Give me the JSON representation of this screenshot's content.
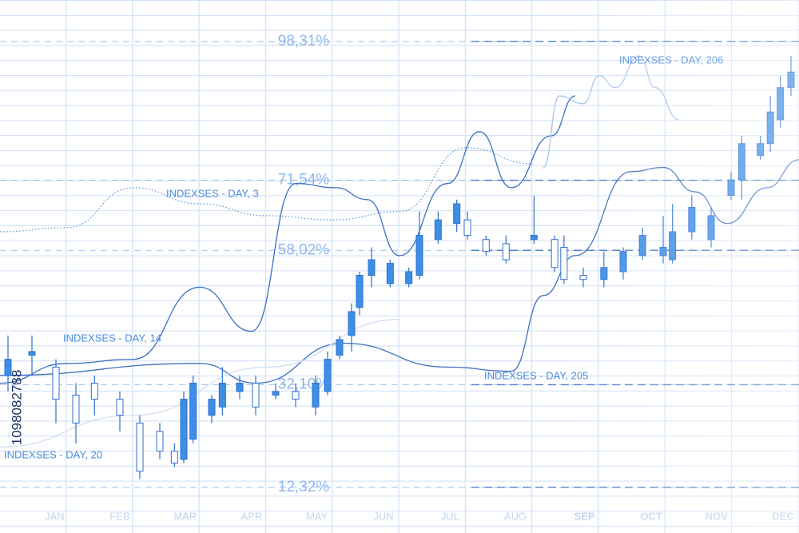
{
  "image_id": "1098082788",
  "chart_data": {
    "type": "candlestick",
    "xlim": [
      0,
      12
    ],
    "ylim": [
      3.5,
      106.3
    ],
    "yticks": [
      {
        "value": 98.31,
        "label": "98,31%"
      },
      {
        "value": 71.54,
        "label": "71,54%"
      },
      {
        "value": 58.02,
        "label": "58,02%"
      },
      {
        "value": 32.1,
        "label": "32,10%"
      },
      {
        "value": 12.32,
        "label": "12,32%"
      }
    ],
    "xticks": [
      {
        "value": 0.82,
        "label": "JAN"
      },
      {
        "value": 1.8,
        "label": "FEB"
      },
      {
        "value": 2.78,
        "label": "MAR"
      },
      {
        "value": 3.78,
        "label": "APR"
      },
      {
        "value": 4.76,
        "label": "MAY"
      },
      {
        "value": 5.76,
        "label": "JUN"
      },
      {
        "value": 6.76,
        "label": "JUL"
      },
      {
        "value": 7.74,
        "label": "AUG"
      },
      {
        "value": 8.78,
        "label": "SEP"
      },
      {
        "value": 9.78,
        "label": "OCT"
      },
      {
        "value": 10.76,
        "label": "NOV"
      },
      {
        "value": 11.76,
        "label": "DEC"
      }
    ],
    "color": "#3d8fe6",
    "candles": {
      "x": [
        0.12,
        0.48,
        0.84,
        1.14,
        1.42,
        1.8,
        2.1,
        2.4,
        2.62,
        2.76,
        2.9,
        3.18,
        3.34,
        3.6,
        3.84,
        4.14,
        4.44,
        4.74,
        4.92,
        5.1,
        5.28,
        5.4,
        5.58,
        5.86,
        6.14,
        6.3,
        6.58,
        6.86,
        7.02,
        7.3,
        7.6,
        8.02,
        8.33,
        8.47,
        8.76,
        9.07,
        9.36,
        9.65,
        9.96,
        10.1,
        10.39,
        10.68,
        10.98,
        11.14,
        11.42,
        11.57,
        11.72,
        11.88
      ],
      "open": [
        33.9,
        37.8,
        35.5,
        30.1,
        32.4,
        29.3,
        24.7,
        23.1,
        19.3,
        17.7,
        21.6,
        26.2,
        27.8,
        30.8,
        32.4,
        30.1,
        30.8,
        27.8,
        30.8,
        37.8,
        41.6,
        47.0,
        53.2,
        51.6,
        51.6,
        53.2,
        60.1,
        63.2,
        63.9,
        60.1,
        59.3,
        60.1,
        60.1,
        58.6,
        53.2,
        52.4,
        53.9,
        57.0,
        57.0,
        56.2,
        61.6,
        60.1,
        68.6,
        71.6,
        76.3,
        78.6,
        83.2,
        89.4
      ],
      "close": [
        37.0,
        38.5,
        29.3,
        24.7,
        29.3,
        26.2,
        15.4,
        19.3,
        17.0,
        29.3,
        32.4,
        29.3,
        32.4,
        32.4,
        27.8,
        30.8,
        29.3,
        32.4,
        37.0,
        40.8,
        46.2,
        53.2,
        56.2,
        55.5,
        53.9,
        60.9,
        63.9,
        67.0,
        60.9,
        57.8,
        56.2,
        60.9,
        54.7,
        52.4,
        52.4,
        54.7,
        57.8,
        60.9,
        58.6,
        61.6,
        66.3,
        64.7,
        71.6,
        78.6,
        78.6,
        84.7,
        89.4,
        92.4
      ],
      "high": [
        41.6,
        41.6,
        37.0,
        32.4,
        33.9,
        30.8,
        26.2,
        24.7,
        20.8,
        30.8,
        33.9,
        30.1,
        35.5,
        33.9,
        33.9,
        32.4,
        32.4,
        33.9,
        38.5,
        41.6,
        47.8,
        53.9,
        58.6,
        56.2,
        54.7,
        65.5,
        65.5,
        67.8,
        65.5,
        60.9,
        60.9,
        68.6,
        60.9,
        60.9,
        54.7,
        57.8,
        58.6,
        62.4,
        64.7,
        67.0,
        68.6,
        66.3,
        73.2,
        80.1,
        80.1,
        87.8,
        91.7,
        95.5
      ],
      "low": [
        30.8,
        33.9,
        24.7,
        20.8,
        26.2,
        23.1,
        13.9,
        17.7,
        16.2,
        17.0,
        20.8,
        24.7,
        26.2,
        29.3,
        26.2,
        29.3,
        27.8,
        26.2,
        30.1,
        37.0,
        38.5,
        45.5,
        50.9,
        50.9,
        50.9,
        52.4,
        59.3,
        61.6,
        60.1,
        57.0,
        55.5,
        59.3,
        53.9,
        51.6,
        50.9,
        50.9,
        52.4,
        56.2,
        55.5,
        55.5,
        60.1,
        58.6,
        67.8,
        67.8,
        75.5,
        77.0,
        81.7,
        87.8
      ]
    },
    "lines": [
      {
        "name": "INDEXSES - DAY, 3",
        "color": "#5a8fd8",
        "style": "dotted",
        "x": [
          0,
          1,
          2,
          3,
          4,
          5,
          6,
          7,
          8
        ],
        "values": [
          61.6,
          62.4,
          70.1,
          67.0,
          64.7,
          63.9,
          65.5,
          77.8,
          74.7
        ]
      },
      {
        "name": "INDEXSES - DAY, 14",
        "color": "#3a6fc8",
        "style": "solid",
        "x": [
          0,
          1,
          2,
          3,
          3.78,
          4.44,
          5.04,
          5.52,
          6,
          6.72,
          7.2,
          7.68,
          8.28,
          8.64
        ],
        "values": [
          32.4,
          36.2,
          37.0,
          50.9,
          42.4,
          70.9,
          70.1,
          67.8,
          57.0,
          70.9,
          80.9,
          70.1,
          80.1,
          87.8
        ]
      },
      {
        "name": "INDEXSES - DAY, 205",
        "color": "#3f6fc4",
        "style": "solid",
        "x": [
          0,
          3,
          3.84,
          5.16,
          6.72,
          7.68,
          8.16,
          8.64,
          9.48,
          9.96,
          10.44,
          10.92,
          11.52,
          12
        ],
        "values": [
          33.9,
          36.2,
          32.4,
          40.1,
          35.5,
          34.7,
          49.3,
          57.0,
          73.2,
          74.0,
          69.3,
          63.2,
          70.1,
          75.5
        ]
      },
      {
        "name": "INDEXSES - DAY, 206",
        "color": "#a9c4ee",
        "style": "solid",
        "x": [
          8.16,
          8.4,
          8.76,
          9.0,
          9.24,
          9.6,
          9.84,
          10.2
        ],
        "values": [
          74.0,
          87.8,
          86.3,
          91.7,
          89.4,
          95.5,
          89.4,
          83.2
        ]
      },
      {
        "name": "INDEXSES - DAY, 20",
        "color": "#d3def0",
        "style": "solid",
        "x": [
          0,
          2,
          4,
          6
        ],
        "values": [
          20.1,
          26.2,
          35.5,
          44.7
        ]
      }
    ]
  }
}
